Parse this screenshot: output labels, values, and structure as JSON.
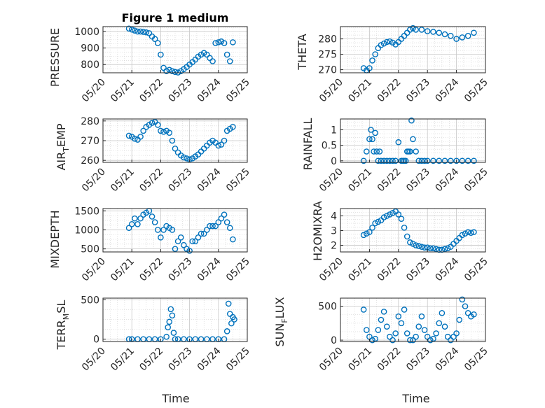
{
  "title": "Figure 1 medium",
  "x_axis": {
    "label": "Time",
    "ticks": [
      "05/20",
      "05/21",
      "05/22",
      "05/23",
      "05/24",
      "05/25"
    ]
  },
  "colors": {
    "marker": "#0072BD",
    "grid": "#c8c8c8",
    "axis": "#262626"
  },
  "chart_data": [
    {
      "type": "scatter",
      "ylabel": "PRESSURE",
      "ylim": [
        750,
        1030
      ],
      "yticks": [
        800,
        900,
        1000
      ],
      "grid": true,
      "x": [
        20.9,
        21.0,
        21.1,
        21.2,
        21.3,
        21.4,
        21.5,
        21.6,
        21.7,
        21.8,
        21.9,
        22.0,
        22.1,
        22.2,
        22.3,
        22.4,
        22.5,
        22.6,
        22.7,
        22.8,
        22.9,
        23.0,
        23.1,
        23.2,
        23.3,
        23.4,
        23.5,
        23.6,
        23.7,
        23.8,
        23.9,
        24.0,
        24.1,
        24.2,
        24.3,
        24.4,
        24.5
      ],
      "y": [
        1018,
        1012,
        1006,
        1000,
        1000,
        998,
        995,
        990,
        970,
        955,
        930,
        860,
        780,
        760,
        768,
        760,
        755,
        752,
        760,
        772,
        785,
        800,
        815,
        830,
        848,
        860,
        870,
        860,
        840,
        820,
        930,
        935,
        940,
        930,
        860,
        820,
        935
      ]
    },
    {
      "type": "scatter",
      "ylabel": "THETA",
      "ylim": [
        269,
        284
      ],
      "yticks": [
        270,
        275,
        280
      ],
      "grid": true,
      "x": [
        20.8,
        20.9,
        21.0,
        21.1,
        21.2,
        21.3,
        21.4,
        21.5,
        21.6,
        21.7,
        21.8,
        21.9,
        22.0,
        22.1,
        22.2,
        22.3,
        22.4,
        22.5,
        22.6,
        22.8,
        23.0,
        23.2,
        23.4,
        23.6,
        23.8,
        24.0,
        24.2,
        24.4,
        24.6
      ],
      "y": [
        270.5,
        269.8,
        270.5,
        273,
        275,
        277,
        278,
        278.5,
        279,
        279.2,
        278.8,
        278.2,
        279,
        280,
        281,
        282,
        283,
        283.5,
        283,
        283,
        282.5,
        282.3,
        282,
        281.5,
        281,
        280,
        280.5,
        281,
        282
      ]
    },
    {
      "type": "scatter",
      "ylabel": "AIR_TEMP",
      "ylim": [
        259,
        281
      ],
      "yticks": [
        260,
        270,
        280
      ],
      "grid": true,
      "x": [
        20.9,
        21.0,
        21.1,
        21.2,
        21.3,
        21.4,
        21.5,
        21.6,
        21.7,
        21.8,
        21.9,
        22.0,
        22.1,
        22.2,
        22.3,
        22.4,
        22.5,
        22.6,
        22.7,
        22.8,
        22.9,
        23.0,
        23.1,
        23.2,
        23.3,
        23.4,
        23.5,
        23.6,
        23.7,
        23.8,
        23.9,
        24.0,
        24.1,
        24.2,
        24.3,
        24.4,
        24.5
      ],
      "y": [
        272.5,
        272,
        271,
        270.5,
        272,
        275,
        277,
        278,
        279,
        279.5,
        278,
        275,
        274.5,
        275,
        274,
        270,
        266,
        264,
        262.5,
        261.5,
        261,
        260.5,
        261,
        262,
        263,
        264.5,
        266,
        267.5,
        269,
        270,
        269,
        267.5,
        268,
        270,
        275,
        276,
        277
      ]
    },
    {
      "type": "scatter",
      "ylabel": "RAINFALL",
      "ylim": [
        -0.05,
        1.35
      ],
      "yticks": [
        0,
        0.5,
        1
      ],
      "grid": true,
      "x": [
        20.8,
        20.9,
        21.0,
        21.05,
        21.1,
        21.15,
        21.2,
        21.25,
        21.3,
        21.35,
        21.4,
        21.5,
        21.6,
        21.7,
        21.8,
        21.9,
        22.0,
        22.1,
        22.15,
        22.2,
        22.25,
        22.3,
        22.35,
        22.4,
        22.45,
        22.5,
        22.6,
        22.7,
        22.8,
        22.9,
        23.0,
        23.2,
        23.4,
        23.6,
        23.8,
        24.0,
        24.2,
        24.4,
        24.6
      ],
      "y": [
        0,
        0.3,
        0.7,
        1.0,
        0.7,
        0.3,
        0.9,
        0.3,
        0,
        0.3,
        0,
        0,
        0,
        0,
        0,
        0,
        0.6,
        0,
        0,
        0,
        0,
        0.3,
        0.3,
        0.3,
        1.3,
        0.7,
        0.3,
        0,
        0,
        0,
        0,
        0,
        0,
        0,
        0,
        0,
        0,
        0,
        0
      ]
    },
    {
      "type": "scatter",
      "ylabel": "MIXDEPTH",
      "ylim": [
        420,
        1560
      ],
      "yticks": [
        500,
        1000,
        1500
      ],
      "grid": true,
      "x": [
        20.9,
        21.0,
        21.1,
        21.2,
        21.3,
        21.4,
        21.5,
        21.6,
        21.7,
        21.8,
        21.9,
        22.0,
        22.1,
        22.2,
        22.3,
        22.4,
        22.5,
        22.6,
        22.7,
        22.8,
        22.9,
        23.0,
        23.1,
        23.2,
        23.3,
        23.4,
        23.5,
        23.6,
        23.7,
        23.8,
        23.9,
        24.0,
        24.1,
        24.2,
        24.3,
        24.4,
        24.5
      ],
      "y": [
        1050,
        1150,
        1300,
        1150,
        1300,
        1400,
        1450,
        1500,
        1350,
        1200,
        1000,
        800,
        1000,
        1100,
        1050,
        1000,
        500,
        700,
        800,
        600,
        500,
        450,
        700,
        700,
        800,
        900,
        900,
        1000,
        1100,
        1100,
        1100,
        1200,
        1300,
        1400,
        1200,
        1050,
        750
      ]
    },
    {
      "type": "scatter",
      "ylabel": "H2OMIXRA",
      "ylim": [
        1.55,
        4.5
      ],
      "yticks": [
        2,
        3,
        4
      ],
      "grid": true,
      "x": [
        20.8,
        20.9,
        21.0,
        21.1,
        21.2,
        21.3,
        21.4,
        21.5,
        21.6,
        21.7,
        21.8,
        21.9,
        22.0,
        22.1,
        22.2,
        22.3,
        22.4,
        22.5,
        22.6,
        22.7,
        22.8,
        22.9,
        23.0,
        23.1,
        23.2,
        23.3,
        23.4,
        23.5,
        23.6,
        23.7,
        23.8,
        23.9,
        24.0,
        24.1,
        24.2,
        24.3,
        24.4,
        24.5,
        24.6
      ],
      "y": [
        2.7,
        2.8,
        2.9,
        3.2,
        3.5,
        3.6,
        3.7,
        3.9,
        4.0,
        4.1,
        4.2,
        4.3,
        4.1,
        3.8,
        3.2,
        2.6,
        2.2,
        2.1,
        2.0,
        1.95,
        1.9,
        1.85,
        1.85,
        1.8,
        1.8,
        1.75,
        1.7,
        1.7,
        1.75,
        1.8,
        1.9,
        2.1,
        2.3,
        2.5,
        2.7,
        2.8,
        2.9,
        2.85,
        2.9
      ]
    },
    {
      "type": "scatter",
      "ylabel": "TERR_MSL",
      "ylim": [
        -30,
        520
      ],
      "yticks": [
        0,
        500
      ],
      "grid": true,
      "x": [
        20.9,
        21.0,
        21.2,
        21.4,
        21.6,
        21.8,
        22.0,
        22.2,
        22.25,
        22.3,
        22.35,
        22.4,
        22.45,
        22.5,
        22.6,
        22.8,
        23.0,
        23.2,
        23.4,
        23.6,
        23.8,
        24.0,
        24.2,
        24.3,
        24.35,
        24.4,
        24.45,
        24.5,
        24.55
      ],
      "y": [
        0,
        0,
        0,
        0,
        0,
        0,
        0,
        30,
        150,
        220,
        380,
        300,
        80,
        0,
        0,
        0,
        0,
        0,
        0,
        0,
        0,
        0,
        0,
        100,
        450,
        320,
        200,
        280,
        250
      ]
    },
    {
      "type": "scatter",
      "ylabel": "SUN_FLUX",
      "ylim": [
        -20,
        620
      ],
      "yticks": [
        0,
        500
      ],
      "grid": true,
      "x": [
        20.8,
        20.9,
        21.0,
        21.1,
        21.2,
        21.3,
        21.4,
        21.5,
        21.6,
        21.7,
        21.8,
        21.9,
        22.0,
        22.1,
        22.2,
        22.3,
        22.4,
        22.5,
        22.6,
        22.7,
        22.8,
        22.9,
        23.0,
        23.1,
        23.2,
        23.3,
        23.4,
        23.5,
        23.6,
        23.7,
        23.8,
        23.9,
        24.0,
        24.1,
        24.2,
        24.3,
        24.4,
        24.5,
        24.6
      ],
      "y": [
        450,
        150,
        50,
        0,
        20,
        150,
        300,
        420,
        200,
        50,
        0,
        100,
        350,
        250,
        450,
        100,
        0,
        0,
        50,
        200,
        350,
        150,
        50,
        0,
        20,
        100,
        250,
        400,
        200,
        50,
        0,
        50,
        100,
        300,
        600,
        500,
        400,
        350,
        380
      ]
    }
  ]
}
